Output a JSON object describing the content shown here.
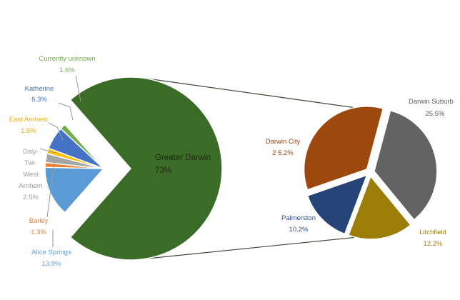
{
  "chart_data": [
    {
      "type": "pie",
      "title": "",
      "slices": [
        {
          "label": "Greater Darwin",
          "value": 73,
          "value_label": "73%",
          "color": "#3a6b27",
          "exploded": true
        },
        {
          "label": "Alice Springs",
          "value": 13.9,
          "value_label": "13.9%",
          "color": "#5b9bd5"
        },
        {
          "label": "Barkly",
          "value": 1.3,
          "value_label": "1.3%",
          "color": "#ed7d31"
        },
        {
          "label": "Daly-Twi-West Arnhem",
          "label_lines": [
            "Daly-",
            "Twi-",
            "West",
            "Arnhem"
          ],
          "value": 2.5,
          "value_label": "2.5%",
          "color": "#a5a5a5"
        },
        {
          "label": "East Arnhem",
          "value": 1.5,
          "value_label": "1.5%",
          "color": "#ffc000"
        },
        {
          "label": "Katherine",
          "value": 6.3,
          "value_label": "6.3%",
          "color": "#4472c4"
        },
        {
          "label": "Currently unknown",
          "value": 1.6,
          "value_label": "1.6%",
          "color": "#70ad47"
        }
      ]
    },
    {
      "type": "pie",
      "title": "",
      "breakdown_of": "Greater Darwin",
      "slices": [
        {
          "label": "Darwin Suburbs",
          "display_label": "Darwin Suburb",
          "value": 25.5,
          "value_label": "25.5%",
          "color": "#636363"
        },
        {
          "label": "Litchfield",
          "value": 12.2,
          "value_label": "12.2%",
          "color": "#9c7d07"
        },
        {
          "label": "Palmerston",
          "value": 10.2,
          "value_label": "10.2%",
          "color": "#264478"
        },
        {
          "label": "Darwin City",
          "value": 25.2,
          "value_label": "2 5.2%",
          "color": "#9e480e"
        }
      ]
    }
  ]
}
